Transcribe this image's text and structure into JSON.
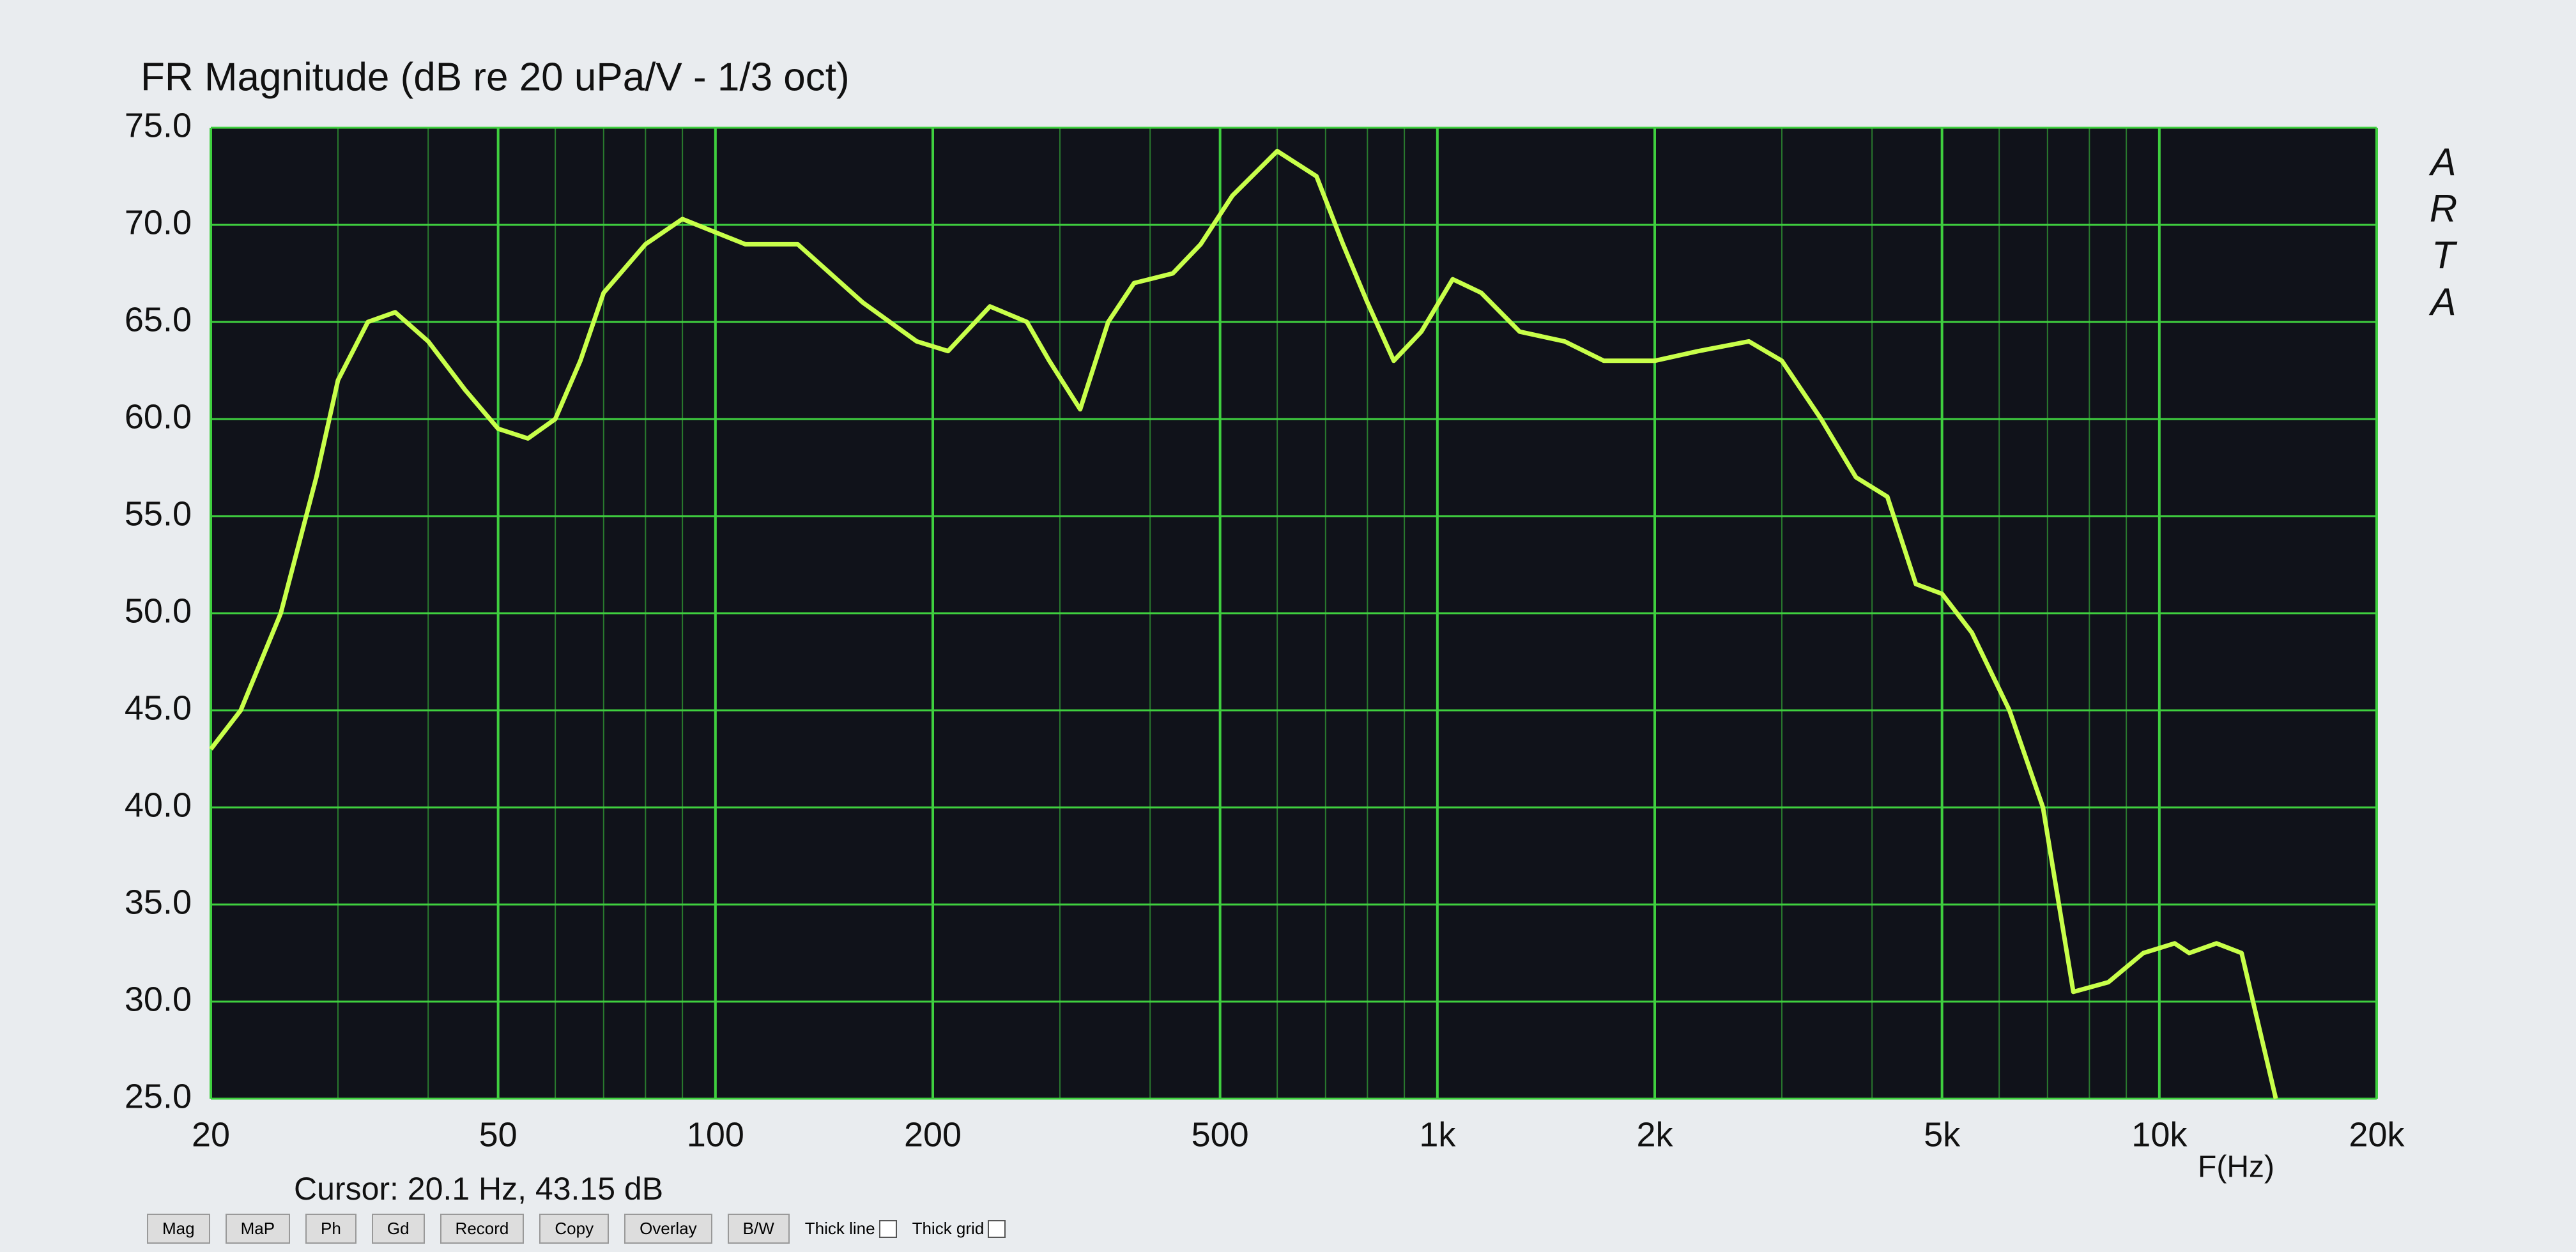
{
  "chart_data": {
    "type": "line",
    "title": "FR Magnitude (dB re 20 uPa/V - 1/3 oct)",
    "x_label": "F(Hz)",
    "side_label": "ARTA",
    "cursor_text": "Cursor: 20.1 Hz, 43.15 dB",
    "x": [
      20,
      22,
      25,
      28,
      30,
      33,
      36,
      40,
      45,
      50,
      55,
      60,
      65,
      70,
      80,
      90,
      110,
      130,
      160,
      190,
      210,
      240,
      270,
      290,
      320,
      350,
      380,
      430,
      470,
      520,
      600,
      680,
      740,
      800,
      870,
      950,
      1050,
      1150,
      1300,
      1500,
      1700,
      2000,
      2300,
      2700,
      3000,
      3400,
      3800,
      4200,
      4600,
      5000,
      5500,
      6200,
      6900,
      7600,
      8500,
      9500,
      10500,
      11000,
      12000,
      13000,
      14500
    ],
    "values": [
      43,
      45,
      50,
      57,
      62,
      65,
      65.5,
      64,
      61.5,
      59.5,
      59,
      60,
      63,
      66.5,
      69,
      70.3,
      69,
      69,
      66,
      64,
      63.5,
      65.8,
      65,
      63,
      60.5,
      65,
      67,
      67.5,
      69,
      71.5,
      73.8,
      72.5,
      69,
      66,
      63,
      64.5,
      67.2,
      66.5,
      64.5,
      64,
      63,
      63,
      63.5,
      64,
      63,
      60,
      57,
      56,
      51.5,
      51,
      49,
      45,
      40,
      30.5,
      31,
      32.5,
      33,
      32.5,
      33,
      32.5,
      25
    ],
    "color": "#c8ff4a",
    "grid_color": "#3fcf3f",
    "log_x": true,
    "xlim": [
      20,
      20000
    ],
    "ylim": [
      25,
      75
    ],
    "xticks": [
      20,
      50,
      100,
      200,
      500,
      {
        "value": 1000,
        "label": "1k"
      },
      {
        "value": 2000,
        "label": "2k"
      },
      {
        "value": 5000,
        "label": "5k"
      },
      {
        "value": 10000,
        "label": "10k"
      },
      {
        "value": 20000,
        "label": "20k"
      }
    ],
    "yticks": [
      {
        "value": 25,
        "label": "25.0"
      },
      {
        "value": 30,
        "label": "30.0"
      },
      {
        "value": 35,
        "label": "35.0"
      },
      {
        "value": 40,
        "label": "40.0"
      },
      {
        "value": 45,
        "label": "45.0"
      },
      {
        "value": 50,
        "label": "50.0"
      },
      {
        "value": 55,
        "label": "55.0"
      },
      {
        "value": 60,
        "label": "60.0"
      },
      {
        "value": 65,
        "label": "65.0"
      },
      {
        "value": 70,
        "label": "70.0"
      },
      {
        "value": 75,
        "label": "75.0"
      }
    ],
    "grid": true
  },
  "toolbar": {
    "buttons": [
      "Mag",
      "MaP",
      "Ph",
      "Gd",
      "Record",
      "Copy",
      "Overlay",
      "B/W"
    ],
    "checkboxes": [
      "Thick line",
      "Thick grid"
    ]
  }
}
